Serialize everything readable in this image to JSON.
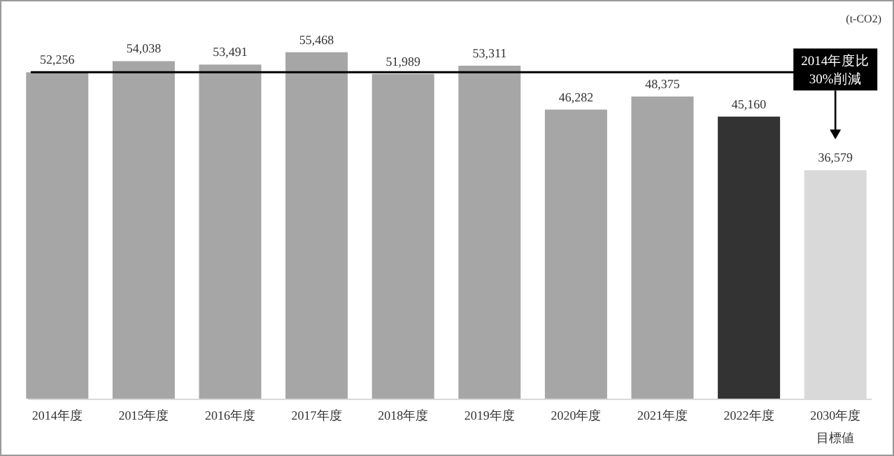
{
  "chart_data": {
    "type": "bar",
    "categories": [
      "2014年度",
      "2015年度",
      "2016年度",
      "2017年度",
      "2018年度",
      "2019年度",
      "2020年度",
      "2021年度",
      "2022年度",
      "2030年度目標値"
    ],
    "values": [
      52256,
      54038,
      53491,
      55468,
      51989,
      53311,
      46282,
      48375,
      45160,
      36579
    ],
    "colors": [
      "#a6a6a6",
      "#a6a6a6",
      "#a6a6a6",
      "#a6a6a6",
      "#a6a6a6",
      "#a6a6a6",
      "#a6a6a6",
      "#a6a6a6",
      "#333333",
      "#d9d9d9"
    ],
    "value_labels": [
      "52,256",
      "54,038",
      "53,491",
      "55,468",
      "51,989",
      "53,311",
      "46,282",
      "48,375",
      "45,160",
      "36,579"
    ],
    "ref_lines": [
      {
        "axis": "y",
        "value": 52256,
        "color": "#000000"
      }
    ],
    "annotations": [
      "(t-CO2)",
      "2014年度比30%削減"
    ]
  }
}
